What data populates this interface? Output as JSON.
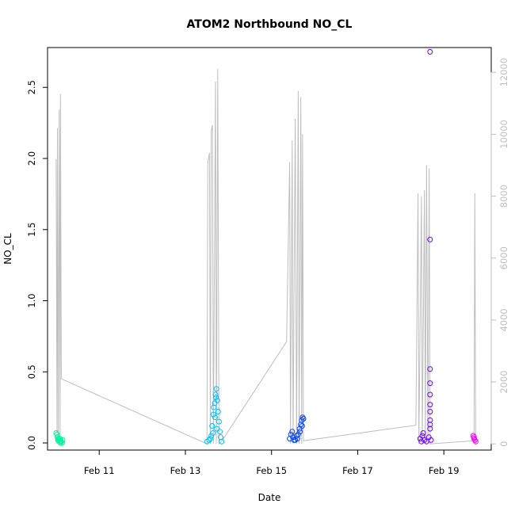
{
  "chart_data": {
    "type": "scatter",
    "title": "ATOM2 Northbound NO_CL",
    "xlabel": "Date",
    "ylabel": "NO_CL",
    "x_ticks": [
      "Feb 11",
      "Feb 13",
      "Feb 15",
      "Feb 17",
      "Feb 19"
    ],
    "x_tick_days": [
      11,
      13,
      15,
      17,
      19
    ],
    "xlim": [
      9.8,
      20.1
    ],
    "ylim": [
      -0.05,
      2.78
    ],
    "y_ticks": [
      0.0,
      0.5,
      1.0,
      1.5,
      2.0,
      2.5
    ],
    "y_tick_labels": [
      "0.0",
      "0.5",
      "1.0",
      "1.5",
      "2.0",
      "2.5"
    ],
    "y2lim": [
      -200,
      12800
    ],
    "y2_ticks": [
      0,
      2000,
      4000,
      6000,
      8000,
      10000,
      12000
    ],
    "y2_tick_labels": [
      "0",
      "2000",
      "4000",
      "6000",
      "8000",
      "10000",
      "12000"
    ],
    "colors": {
      "secondary_line": "#bebebe",
      "cluster_1": "#00f5a0",
      "cluster_2": "#00bfff",
      "cluster_3": "#0040ff",
      "cluster_4": "#6a00ff",
      "cluster_5": "#ff00ff"
    },
    "series": [
      {
        "color": "cluster_1",
        "x_range": [
          10.0,
          10.15
        ],
        "points": [
          [
            10.0,
            0.07
          ],
          [
            10.02,
            0.06
          ],
          [
            10.03,
            0.04
          ],
          [
            10.05,
            0.03
          ],
          [
            10.06,
            0.02
          ],
          [
            10.08,
            0.01
          ],
          [
            10.1,
            0.0
          ],
          [
            10.12,
            0.01
          ],
          [
            10.14,
            0.0
          ],
          [
            10.15,
            0.02
          ],
          [
            10.04,
            0.02
          ],
          [
            10.09,
            0.03
          ],
          [
            10.11,
            0.015
          ]
        ]
      },
      {
        "color": "cluster_2",
        "x_range": [
          13.45,
          13.85
        ],
        "points": [
          [
            13.5,
            0.01
          ],
          [
            13.55,
            0.02
          ],
          [
            13.6,
            0.05
          ],
          [
            13.62,
            0.12
          ],
          [
            13.65,
            0.2
          ],
          [
            13.68,
            0.28
          ],
          [
            13.7,
            0.34
          ],
          [
            13.72,
            0.38
          ],
          [
            13.74,
            0.3
          ],
          [
            13.76,
            0.22
          ],
          [
            13.78,
            0.15
          ],
          [
            13.8,
            0.08
          ],
          [
            13.82,
            0.04
          ],
          [
            13.84,
            0.01
          ],
          [
            13.66,
            0.25
          ],
          [
            13.71,
            0.32
          ],
          [
            13.69,
            0.18
          ],
          [
            13.73,
            0.1
          ],
          [
            13.64,
            0.07
          ],
          [
            13.58,
            0.03
          ]
        ]
      },
      {
        "color": "cluster_3",
        "x_range": [
          15.4,
          15.75
        ],
        "points": [
          [
            15.42,
            0.03
          ],
          [
            15.45,
            0.06
          ],
          [
            15.48,
            0.08
          ],
          [
            15.5,
            0.04
          ],
          [
            15.55,
            0.02
          ],
          [
            15.6,
            0.03
          ],
          [
            15.62,
            0.06
          ],
          [
            15.65,
            0.1
          ],
          [
            15.68,
            0.13
          ],
          [
            15.7,
            0.16
          ],
          [
            15.72,
            0.18
          ],
          [
            15.74,
            0.17
          ],
          [
            15.58,
            0.05
          ],
          [
            15.52,
            0.02
          ],
          [
            15.66,
            0.08
          ],
          [
            15.71,
            0.12
          ]
        ]
      },
      {
        "color": "cluster_4",
        "x_range": [
          18.4,
          18.75
        ],
        "points": [
          [
            18.45,
            0.03
          ],
          [
            18.5,
            0.05
          ],
          [
            18.55,
            0.02
          ],
          [
            18.6,
            0.01
          ],
          [
            18.65,
            0.04
          ],
          [
            18.68,
            0.1
          ],
          [
            18.68,
            0.13
          ],
          [
            18.68,
            0.16
          ],
          [
            18.68,
            0.22
          ],
          [
            18.68,
            0.27
          ],
          [
            18.68,
            0.34
          ],
          [
            18.68,
            0.42
          ],
          [
            18.68,
            0.52
          ],
          [
            18.68,
            1.43
          ],
          [
            18.68,
            2.75
          ],
          [
            18.7,
            0.02
          ],
          [
            18.52,
            0.07
          ],
          [
            18.48,
            0.01
          ]
        ]
      },
      {
        "color": "cluster_5",
        "x_range": [
          19.65,
          19.8
        ],
        "points": [
          [
            19.68,
            0.05
          ],
          [
            19.7,
            0.03
          ],
          [
            19.72,
            0.02
          ],
          [
            19.74,
            0.01
          ],
          [
            19.7,
            0.04
          ]
        ]
      }
    ],
    "secondary_series": {
      "color": "secondary_line",
      "points": [
        [
          10.0,
          9200
        ],
        [
          10.02,
          0
        ],
        [
          10.03,
          10200
        ],
        [
          10.05,
          0
        ],
        [
          10.07,
          10800
        ],
        [
          10.09,
          0
        ],
        [
          10.1,
          11300
        ],
        [
          10.12,
          2100
        ],
        [
          13.5,
          0
        ],
        [
          13.52,
          9100
        ],
        [
          13.56,
          9400
        ],
        [
          13.58,
          0
        ],
        [
          13.6,
          10100
        ],
        [
          13.63,
          10300
        ],
        [
          13.65,
          0
        ],
        [
          13.7,
          11700
        ],
        [
          13.72,
          0
        ],
        [
          13.75,
          12100
        ],
        [
          13.78,
          0
        ],
        [
          13.85,
          100
        ],
        [
          15.35,
          3300
        ],
        [
          15.42,
          9100
        ],
        [
          15.44,
          0
        ],
        [
          15.48,
          9800
        ],
        [
          15.5,
          0
        ],
        [
          15.55,
          10500
        ],
        [
          15.58,
          0
        ],
        [
          15.62,
          11400
        ],
        [
          15.64,
          0
        ],
        [
          15.68,
          11200
        ],
        [
          15.7,
          0
        ],
        [
          15.72,
          10000
        ],
        [
          15.74,
          100
        ],
        [
          18.35,
          600
        ],
        [
          18.4,
          8100
        ],
        [
          18.42,
          0
        ],
        [
          18.48,
          8000
        ],
        [
          18.5,
          0
        ],
        [
          18.55,
          8200
        ],
        [
          18.57,
          0
        ],
        [
          18.6,
          9000
        ],
        [
          18.63,
          0
        ],
        [
          18.66,
          8900
        ],
        [
          18.68,
          0
        ],
        [
          19.7,
          100
        ],
        [
          19.72,
          8100
        ],
        [
          19.74,
          0
        ]
      ]
    }
  }
}
